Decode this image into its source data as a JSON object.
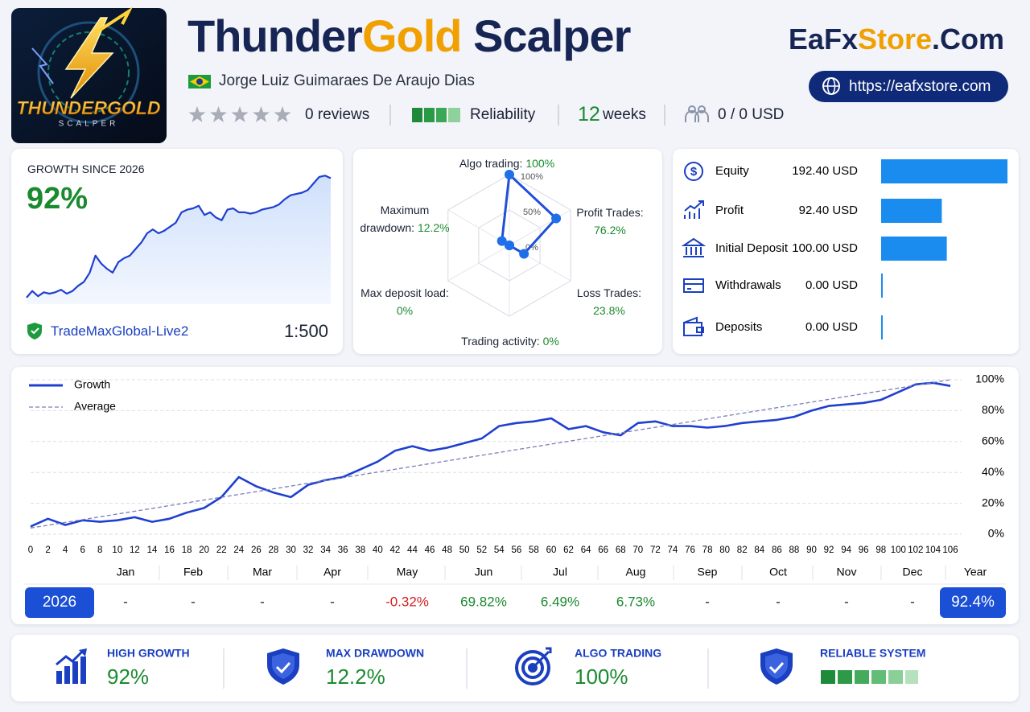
{
  "header": {
    "logo": {
      "line1": "THUNDERGOLD",
      "line2": "SCALPER"
    },
    "title": [
      "Thunder",
      "Gold",
      "Scalper"
    ],
    "author": "Jorge Luiz Guimaraes De Araujo Dias",
    "reviews": "0 reviews",
    "reliability": "Reliability",
    "weeks_value": "12",
    "weeks_unit": "weeks",
    "funds": "0 / 0 USD",
    "brand": [
      "EaFx",
      "Store",
      ".Com"
    ],
    "url": "https://eafxstore.com"
  },
  "growth_card": {
    "label": "GROWTH SINCE 2026",
    "value": "92%",
    "broker": "TradeMaxGlobal-Live2",
    "leverage": "1:500"
  },
  "radar": {
    "type": "radar",
    "categories": [
      "Algo trading:",
      "Profit Trades:",
      "Loss Trades:",
      "Trading activity:",
      "Max deposit load:",
      "Maximum drawdown:"
    ],
    "values": [
      100,
      76.2,
      23.8,
      0,
      0,
      12.2
    ],
    "value_labels": [
      "100%",
      "76.2%",
      "23.8%",
      "0%",
      "0%",
      "12.2%"
    ],
    "rlim": [
      0,
      100
    ],
    "rticks": [
      {
        "value": 0,
        "label": "0%"
      },
      {
        "value": 50,
        "label": "50%"
      },
      {
        "value": 100,
        "label": "100%"
      }
    ],
    "color": "#1f4fd8"
  },
  "balance": {
    "type": "bar",
    "categories": [
      "Equity",
      "Profit",
      "Initial Deposit",
      "Withdrawals",
      "Deposits"
    ],
    "values": [
      192.4,
      92.4,
      100,
      0,
      0
    ],
    "value_labels": [
      "192.40 USD",
      "92.40 USD",
      "100.00 USD",
      "0.00 USD",
      "0.00 USD"
    ],
    "color": "#1a8cf0"
  },
  "chart_data": {
    "type": "line",
    "x": [
      0,
      2,
      4,
      6,
      8,
      10,
      12,
      14,
      16,
      18,
      20,
      22,
      24,
      26,
      28,
      30,
      32,
      34,
      36,
      38,
      40,
      42,
      44,
      46,
      48,
      50,
      52,
      54,
      56,
      58,
      60,
      62,
      64,
      66,
      68,
      70,
      72,
      74,
      76,
      78,
      80,
      82,
      84,
      86,
      88,
      90,
      92,
      94,
      96,
      98,
      100,
      102,
      104,
      106
    ],
    "series": [
      {
        "name": "Growth",
        "color": "#1f3fd0",
        "values": [
          5,
          10,
          6,
          9,
          8,
          9,
          11,
          8,
          10,
          14,
          17,
          24,
          37,
          31,
          27,
          24,
          32,
          35,
          37,
          42,
          47,
          54,
          57,
          54,
          56,
          59,
          62,
          70,
          72,
          73,
          75,
          68,
          70,
          66,
          64,
          72,
          73,
          70,
          70,
          69,
          70,
          72,
          73,
          74,
          76,
          80,
          83,
          84,
          85,
          87,
          92,
          97,
          98,
          96
        ]
      },
      {
        "name": "Average",
        "color": "#7a7fb8",
        "dashed": true,
        "x": [
          0,
          106
        ],
        "values": [
          4,
          100
        ]
      }
    ],
    "xlim": [
      0,
      106
    ],
    "ylim": [
      0,
      100
    ],
    "xticks": [
      0,
      2,
      4,
      6,
      8,
      10,
      12,
      14,
      16,
      18,
      20,
      22,
      24,
      26,
      28,
      30,
      32,
      34,
      36,
      38,
      40,
      42,
      44,
      46,
      48,
      50,
      52,
      54,
      56,
      58,
      60,
      62,
      64,
      66,
      68,
      70,
      72,
      74,
      76,
      78,
      80,
      82,
      84,
      86,
      88,
      90,
      92,
      94,
      96,
      98,
      100,
      102,
      104,
      106
    ],
    "yticks": [
      {
        "value": 0,
        "label": "0%"
      },
      {
        "value": 20,
        "label": "20%"
      },
      {
        "value": 40,
        "label": "40%"
      },
      {
        "value": 60,
        "label": "60%"
      },
      {
        "value": 80,
        "label": "80%"
      },
      {
        "value": 100,
        "label": "100%"
      }
    ],
    "grid": true
  },
  "monthly": {
    "months": [
      "Jan",
      "Feb",
      "Mar",
      "Apr",
      "May",
      "Jun",
      "Jul",
      "Aug",
      "Sep",
      "Oct",
      "Nov",
      "Dec",
      "Year"
    ],
    "year": "2026",
    "values": [
      "-",
      "-",
      "-",
      "-",
      "-0.32%",
      "69.82%",
      "6.49%",
      "6.73%",
      "-",
      "-",
      "-",
      "-"
    ],
    "total": "92.4%"
  },
  "highlights": [
    {
      "label": "HIGH GROWTH",
      "value": "92%"
    },
    {
      "label": "MAX DRAWDOWN",
      "value": "12.2%"
    },
    {
      "label": "ALGO TRADING",
      "value": "100%"
    },
    {
      "label": "RELIABLE SYSTEM"
    }
  ]
}
